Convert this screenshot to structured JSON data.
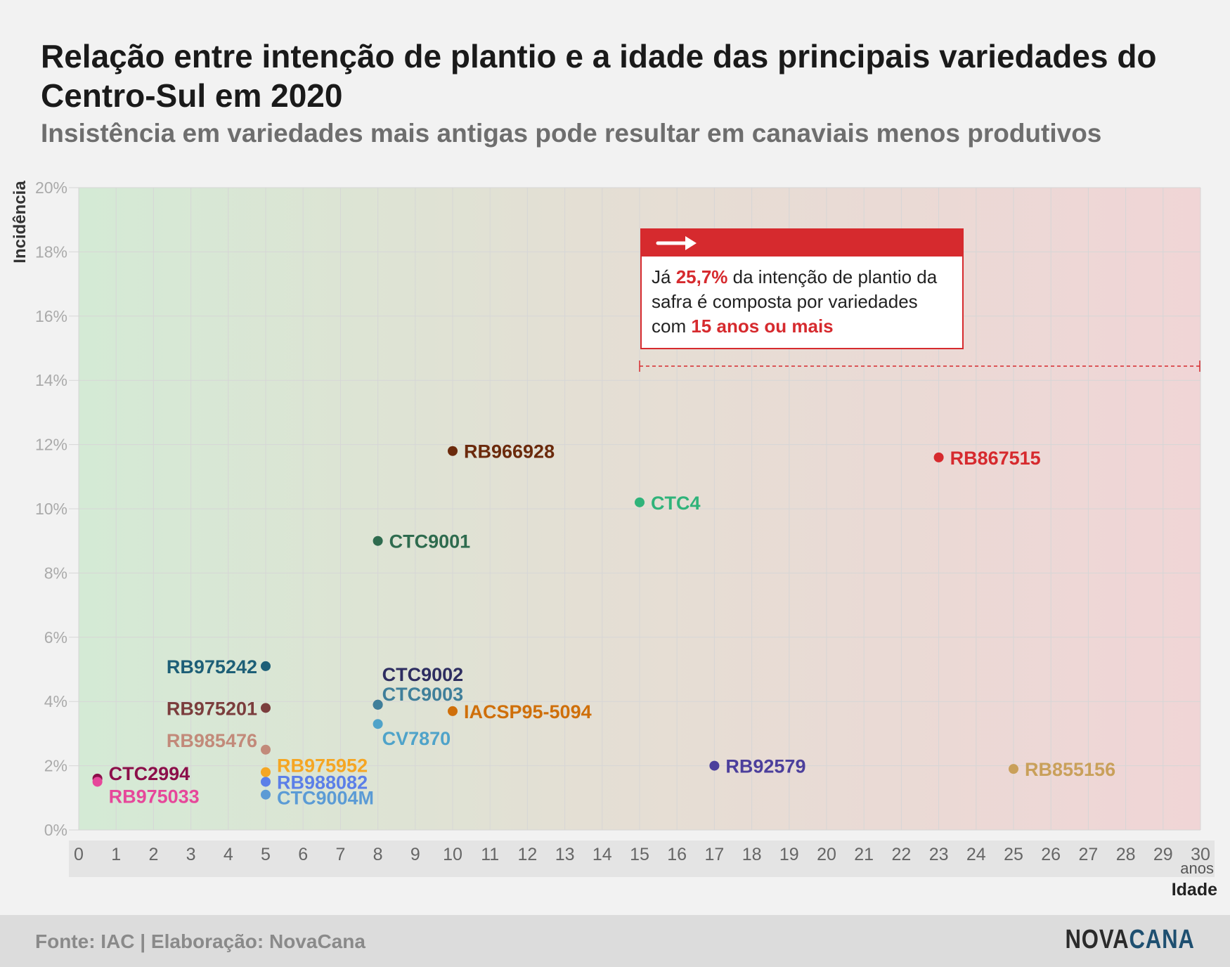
{
  "header": {
    "title": "Relação entre intenção de plantio e a idade das principais variedades do Centro-Sul em 2020",
    "subtitle": "Insistência em variedades mais antigas pode resultar em canaviais menos produtivos"
  },
  "callout": {
    "text_1": "Já ",
    "highlight_1": "25,7%",
    "text_2": " da intenção de plantio da safra é composta por variedades com ",
    "highlight_2": "15 anos ou mais",
    "icon": "arrow-right-icon",
    "accent_color": "#d62a2e"
  },
  "footer": {
    "source": "Fonte: IAC | Elaboração: NovaCana",
    "logo_part1": "NOVA",
    "logo_part2": "CANA"
  },
  "chart_data": {
    "type": "scatter",
    "xlabel": "Idade",
    "xunit": "anos",
    "ylabel": "Incidência",
    "xlim": [
      0,
      30
    ],
    "ylim": [
      0,
      20
    ],
    "x_ticks": [
      0,
      1,
      2,
      3,
      4,
      5,
      6,
      7,
      8,
      9,
      10,
      11,
      12,
      13,
      14,
      15,
      16,
      17,
      18,
      19,
      20,
      21,
      22,
      23,
      24,
      25,
      26,
      27,
      28,
      29,
      30
    ],
    "y_ticks": [
      "0%",
      "2%",
      "4%",
      "6%",
      "8%",
      "10%",
      "12%",
      "14%",
      "16%",
      "18%",
      "20%"
    ],
    "y_tick_values": [
      0,
      2,
      4,
      6,
      8,
      10,
      12,
      14,
      16,
      18,
      20
    ],
    "grid": true,
    "background_gradient": [
      "#d4ead5",
      "#f0d5d6"
    ],
    "threshold_x": 15,
    "points": [
      {
        "name": "RB966928",
        "x": 10,
        "y": 11.8,
        "color": "#6b2a0c",
        "label_side": "right"
      },
      {
        "name": "RB867515",
        "x": 23,
        "y": 11.6,
        "color": "#d62a2e",
        "label_side": "right"
      },
      {
        "name": "CTC4",
        "x": 15,
        "y": 10.2,
        "color": "#2fb37a",
        "label_side": "right"
      },
      {
        "name": "CTC9001",
        "x": 8,
        "y": 9.0,
        "color": "#2e6b4e",
        "label_side": "right"
      },
      {
        "name": "RB975242",
        "x": 5,
        "y": 5.1,
        "color": "#1d5f77",
        "label_side": "left"
      },
      {
        "name": "RB975201",
        "x": 5,
        "y": 3.8,
        "color": "#7b3d3d",
        "label_side": "left"
      },
      {
        "name": "RB985476",
        "x": 5,
        "y": 2.5,
        "color": "#c28a7a",
        "label_side": "left"
      },
      {
        "name": "RB975952",
        "x": 5,
        "y": 1.8,
        "color": "#f5a623",
        "label_side": "right"
      },
      {
        "name": "RB988082",
        "x": 5,
        "y": 1.5,
        "color": "#5b7fe8",
        "label_side": "right"
      },
      {
        "name": "CTC9004M",
        "x": 5,
        "y": 1.1,
        "color": "#5b9bd5",
        "label_side": "right"
      },
      {
        "name": "CTC9002",
        "x": 8,
        "y": 3.9,
        "color": "#2d2d60",
        "label_side": "right"
      },
      {
        "name": "CTC9003",
        "x": 8,
        "y": 3.9,
        "color": "#3f7f9a",
        "label_side": "right"
      },
      {
        "name": "CV7870",
        "x": 8,
        "y": 3.3,
        "color": "#4fa3c9",
        "label_side": "right"
      },
      {
        "name": "IACSP95-5094",
        "x": 10,
        "y": 3.7,
        "color": "#cf6f0a",
        "label_side": "right"
      },
      {
        "name": "CTC2994",
        "x": 0.5,
        "y": 1.6,
        "color": "#8c0f4a",
        "label_side": "right"
      },
      {
        "name": "RB975033",
        "x": 0.5,
        "y": 1.5,
        "color": "#e6479a",
        "label_side": "right"
      },
      {
        "name": "RB92579",
        "x": 17,
        "y": 2.0,
        "color": "#4c3f9c",
        "label_side": "right"
      },
      {
        "name": "RB855156",
        "x": 25,
        "y": 1.9,
        "color": "#c9a05a",
        "label_side": "right"
      }
    ]
  }
}
